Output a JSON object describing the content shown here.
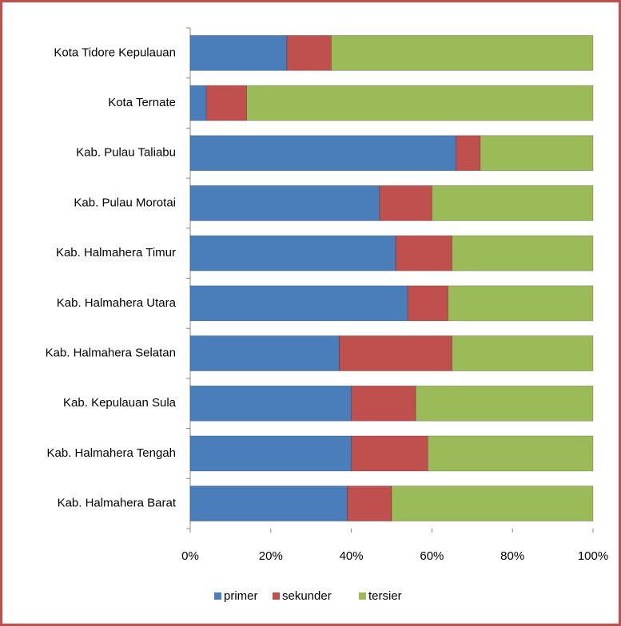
{
  "chart_data": {
    "type": "stacked_barh",
    "categories": [
      "Kota Tidore Kepulauan",
      "Kota Ternate",
      "Kab. Pulau Taliabu",
      "Kab. Pulau Morotai",
      "Kab. Halmahera Timur",
      "Kab. Halmahera Utara",
      "Kab. Halmahera Selatan",
      "Kab. Kepulauan Sula",
      "Kab. Halmahera Tengah",
      "Kab. Halmahera Barat"
    ],
    "series": [
      {
        "name": "primer",
        "color": "#4a7ebb",
        "values": [
          24,
          4,
          66,
          47,
          51,
          54,
          37,
          40,
          40,
          39
        ]
      },
      {
        "name": "sekunder",
        "color": "#c0504d",
        "values": [
          11,
          10,
          6,
          13,
          14,
          10,
          28,
          16,
          19,
          11
        ]
      },
      {
        "name": "tersier",
        "color": "#9bbb59",
        "values": [
          65,
          86,
          28,
          40,
          35,
          36,
          35,
          44,
          41,
          50
        ]
      }
    ],
    "xlim": [
      0,
      100
    ],
    "xticks": [
      {
        "value": 0,
        "label": "0%"
      },
      {
        "value": 20,
        "label": "20%"
      },
      {
        "value": 40,
        "label": "40%"
      },
      {
        "value": 60,
        "label": "60%"
      },
      {
        "value": 80,
        "label": "80%"
      },
      {
        "value": 100,
        "label": "100%"
      }
    ],
    "legend": "bottom"
  }
}
